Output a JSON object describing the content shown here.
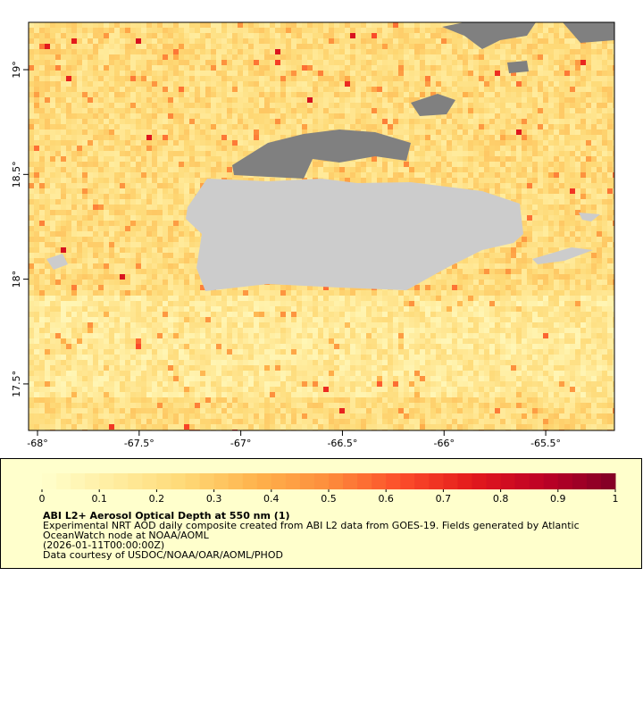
{
  "map": {
    "xlim": [
      -68.044,
      -65.162
    ],
    "ylim": [
      17.278,
      19.226
    ],
    "xticks": [
      {
        "value": -68,
        "label": "-68°"
      },
      {
        "value": -67.5,
        "label": "-67.5°"
      },
      {
        "value": -67,
        "label": "-67°"
      },
      {
        "value": -66.5,
        "label": "-66.5°"
      },
      {
        "value": -66,
        "label": "-66°"
      },
      {
        "value": -65.5,
        "label": "-65.5°"
      }
    ],
    "yticks": [
      {
        "value": 17.5,
        "label": "17.5°"
      },
      {
        "value": 18,
        "label": "18°"
      },
      {
        "value": 18.5,
        "label": "18.5°"
      },
      {
        "value": 19,
        "label": "19°"
      }
    ]
  },
  "colorbar": {
    "lim": [
      0,
      1
    ],
    "ticks": [
      0,
      0.1,
      0.2,
      0.3,
      0.4,
      0.5,
      0.6,
      0.7,
      0.8,
      0.9,
      1
    ],
    "colors": [
      "#ffffcc",
      "#ffeda0",
      "#fed976",
      "#feb24c",
      "#fd8d3c",
      "#fc4e2a",
      "#e31a1c",
      "#bd0026",
      "#800026"
    ]
  },
  "legend": {
    "title": "ABI L2+ Aerosol Optical Depth at 550 nm (1)",
    "lines": [
      "Experimental NRT AOD daily composite created from ABI L2 data from GOES-19. Fields generated by Atlantic",
      "OceanWatch node at NOAA/AOML",
      "(2026-01-11T00:00:00Z)",
      "Data courtesy of USDOC/NOAA/OAR/AOML/PHOD"
    ]
  }
}
